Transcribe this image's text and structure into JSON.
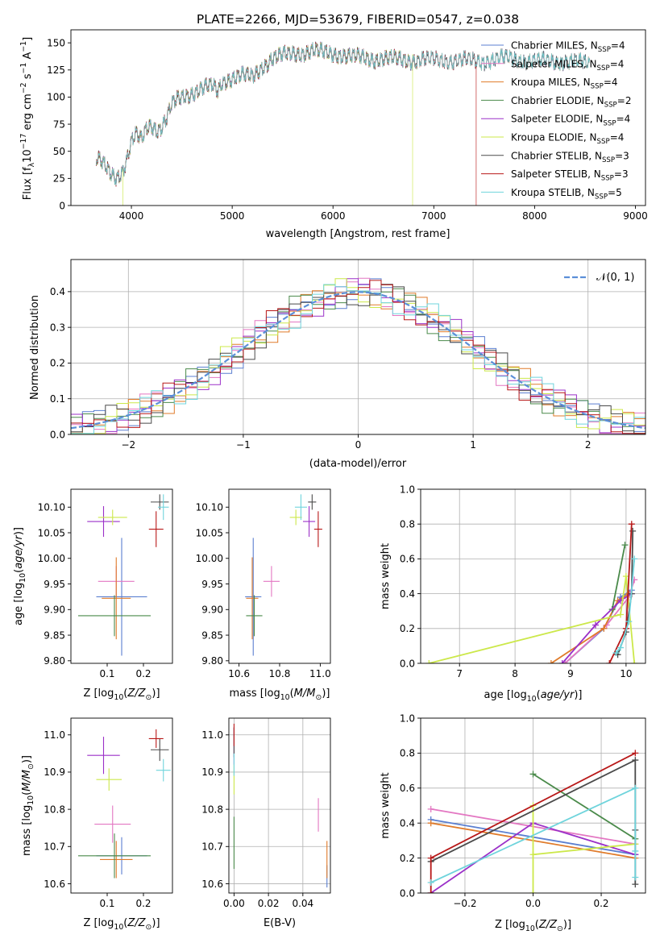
{
  "title": "PLATE=2266, MJD=53679, FIBERID=0547, z=0.038",
  "colors": {
    "Chabrier MILES": "#5b7fd0",
    "Salpeter MILES": "#e377c2",
    "Kroupa MILES": "#e07b2a",
    "Chabrier ELODIE": "#4a8a4a",
    "Salpeter ELODIE": "#9b30c8",
    "Kroupa ELODIE": "#cce84a",
    "Chabrier STELIB": "#4a4a4a",
    "Salpeter STELIB": "#b81818",
    "Kroupa STELIB": "#6fd4dc"
  },
  "legend_spectrum": [
    {
      "name": "Chabrier MILES",
      "nssp": "4"
    },
    {
      "name": "Salpeter MILES",
      "nssp": "4"
    },
    {
      "name": "Kroupa MILES",
      "nssp": "4"
    },
    {
      "name": "Chabrier ELODIE",
      "nssp": "2"
    },
    {
      "name": "Salpeter ELODIE",
      "nssp": "4"
    },
    {
      "name": "Kroupa ELODIE",
      "nssp": "4"
    },
    {
      "name": "Chabrier STELIB",
      "nssp": "3"
    },
    {
      "name": "Salpeter STELIB",
      "nssp": "3"
    },
    {
      "name": "Kroupa STELIB",
      "nssp": "5"
    }
  ],
  "chart_data": [
    {
      "id": "spectrum",
      "type": "line",
      "xlabel": "wavelength [Angstrom, rest frame]",
      "ylabel_parts": [
        "Flux [f",
        "λ",
        "10",
        "−17",
        " erg cm",
        "−2",
        " s",
        "−1",
        " A",
        "−1",
        "]"
      ],
      "xlim": [
        3400,
        9100
      ],
      "ylim": [
        0,
        162
      ],
      "xticks": [
        4000,
        5000,
        6000,
        7000,
        8000,
        9000
      ],
      "yticks": [
        0,
        25,
        50,
        75,
        100,
        125,
        150
      ],
      "continuum": [
        [
          3650,
          42
        ],
        [
          3700,
          40
        ],
        [
          3750,
          35
        ],
        [
          3800,
          30
        ],
        [
          3850,
          27
        ],
        [
          3900,
          30
        ],
        [
          3950,
          40
        ],
        [
          4000,
          58
        ],
        [
          4050,
          65
        ],
        [
          4100,
          60
        ],
        [
          4150,
          72
        ],
        [
          4200,
          75
        ],
        [
          4250,
          70
        ],
        [
          4300,
          72
        ],
        [
          4350,
          80
        ],
        [
          4400,
          92
        ],
        [
          4450,
          97
        ],
        [
          4500,
          100
        ],
        [
          4600,
          104
        ],
        [
          4700,
          108
        ],
        [
          4800,
          110
        ],
        [
          4860,
          105
        ],
        [
          4900,
          114
        ],
        [
          5000,
          118
        ],
        [
          5100,
          120
        ],
        [
          5200,
          118
        ],
        [
          5300,
          128
        ],
        [
          5400,
          136
        ],
        [
          5500,
          138
        ],
        [
          5600,
          140
        ],
        [
          5700,
          141
        ],
        [
          5800,
          143
        ],
        [
          5900,
          141
        ],
        [
          6000,
          140
        ],
        [
          6100,
          139
        ],
        [
          6200,
          137
        ],
        [
          6300,
          136
        ],
        [
          6400,
          135
        ],
        [
          6500,
          136
        ],
        [
          6600,
          135
        ],
        [
          6700,
          134
        ],
        [
          6800,
          134
        ],
        [
          6900,
          135
        ],
        [
          7000,
          134
        ],
        [
          7100,
          134
        ],
        [
          7200,
          134
        ],
        [
          7300,
          134
        ],
        [
          7400,
          133
        ],
        [
          7500,
          133
        ],
        [
          7600,
          135
        ],
        [
          7700,
          136
        ],
        [
          7800,
          135
        ],
        [
          7900,
          134
        ],
        [
          8000,
          133
        ],
        [
          8100,
          133
        ],
        [
          8200,
          133
        ],
        [
          8300,
          133
        ],
        [
          8400,
          132
        ],
        [
          8500,
          132
        ],
        [
          8550,
          131
        ]
      ],
      "dips": [
        {
          "series": "Kroupa ELODIE",
          "x": 3915,
          "to": 0
        },
        {
          "series": "Kroupa ELODIE",
          "x": 6790,
          "to": 0
        },
        {
          "series": "Salpeter STELIB",
          "x": 7420,
          "to": 0
        }
      ]
    },
    {
      "id": "residuals",
      "type": "histogram",
      "xlabel": "(data-model)/error",
      "ylabel": "Normed distribution",
      "xlim": [
        -2.5,
        2.5
      ],
      "ylim": [
        0,
        0.49
      ],
      "xticks": [
        -2,
        -1,
        0,
        1,
        2
      ],
      "yticks": [
        0.0,
        0.1,
        0.2,
        0.3,
        0.4
      ],
      "grid": true,
      "legend": "N(0,1)",
      "bin_width": 0.1,
      "reference": "normal(0,1)"
    },
    {
      "id": "age-vs-Z",
      "type": "errorbar",
      "xlabel": "Z [log10(Z/Z⊙)]",
      "ylabel": "age  [log10(age/yr)]",
      "xlim": [
        0.0,
        0.28
      ],
      "ylim": [
        9.795,
        10.135
      ],
      "xticks": [
        0.1,
        0.2
      ],
      "yticks": [
        9.8,
        9.85,
        9.9,
        9.95,
        10.0,
        10.05,
        10.1
      ],
      "points": [
        {
          "series": "Chabrier MILES",
          "x": 0.14,
          "xerr": 0.07,
          "y": 9.925,
          "yerr": 0.115
        },
        {
          "series": "Salpeter MILES",
          "x": 0.125,
          "xerr": 0.05,
          "y": 9.955,
          "yerr": 0.03
        },
        {
          "series": "Kroupa MILES",
          "x": 0.125,
          "xerr": 0.04,
          "y": 9.922,
          "yerr": 0.08
        },
        {
          "series": "Chabrier ELODIE",
          "x": 0.12,
          "xerr": 0.1,
          "y": 9.888,
          "yerr": 0.04
        },
        {
          "series": "Salpeter ELODIE",
          "x": 0.09,
          "xerr": 0.045,
          "y": 10.072,
          "yerr": 0.03
        },
        {
          "series": "Kroupa ELODIE",
          "x": 0.115,
          "xerr": 0.04,
          "y": 10.08,
          "yerr": 0.015
        },
        {
          "series": "Chabrier STELIB",
          "x": 0.245,
          "xerr": 0.025,
          "y": 10.11,
          "yerr": 0.015
        },
        {
          "series": "Salpeter STELIB",
          "x": 0.235,
          "xerr": 0.02,
          "y": 10.057,
          "yerr": 0.035
        },
        {
          "series": "Kroupa STELIB",
          "x": 0.255,
          "xerr": 0.015,
          "y": 10.1,
          "yerr": 0.025
        }
      ]
    },
    {
      "id": "age-vs-mass",
      "type": "errorbar",
      "xlabel": "mass [log10(M/M⊙)]",
      "ylabel": "",
      "xlim": [
        10.55,
        11.05
      ],
      "ylim": [
        9.795,
        10.135
      ],
      "xticks": [
        10.6,
        10.8,
        11.0
      ],
      "yticks": [
        9.8,
        9.85,
        9.9,
        9.95,
        10.0,
        10.05,
        10.1
      ],
      "points": [
        {
          "series": "Chabrier MILES",
          "x": 10.67,
          "xerr": 0.04,
          "y": 9.925,
          "yerr": 0.115
        },
        {
          "series": "Salpeter MILES",
          "x": 10.76,
          "xerr": 0.04,
          "y": 9.955,
          "yerr": 0.03
        },
        {
          "series": "Kroupa MILES",
          "x": 10.665,
          "xerr": 0.03,
          "y": 9.922,
          "yerr": 0.08
        },
        {
          "series": "Chabrier ELODIE",
          "x": 10.675,
          "xerr": 0.04,
          "y": 9.888,
          "yerr": 0.04
        },
        {
          "series": "Salpeter ELODIE",
          "x": 10.945,
          "xerr": 0.03,
          "y": 10.072,
          "yerr": 0.03
        },
        {
          "series": "Kroupa ELODIE",
          "x": 10.88,
          "xerr": 0.03,
          "y": 10.08,
          "yerr": 0.015
        },
        {
          "series": "Chabrier STELIB",
          "x": 10.96,
          "xerr": 0.02,
          "y": 10.11,
          "yerr": 0.015
        },
        {
          "series": "Salpeter STELIB",
          "x": 10.99,
          "xerr": 0.02,
          "y": 10.057,
          "yerr": 0.035
        },
        {
          "series": "Kroupa STELIB",
          "x": 10.905,
          "xerr": 0.03,
          "y": 10.1,
          "yerr": 0.025
        }
      ]
    },
    {
      "id": "mass-weight-vs-age",
      "type": "line",
      "xlabel": "age  [log10(age/yr)]",
      "ylabel": "mass weight",
      "xlim": [
        6.3,
        10.35
      ],
      "ylim": [
        0.0,
        1.0
      ],
      "xticks": [
        7,
        8,
        9,
        10
      ],
      "yticks": [
        0.0,
        0.2,
        0.4,
        0.6,
        0.8,
        1.0
      ],
      "grid": true,
      "series": [
        {
          "name": "Chabrier MILES",
          "points": [
            [
              8.9,
              0.0
            ],
            [
              9.6,
              0.2
            ],
            [
              9.9,
              0.38
            ],
            [
              10.1,
              0.42
            ]
          ]
        },
        {
          "name": "Salpeter MILES",
          "points": [
            [
              8.9,
              0.0
            ],
            [
              9.65,
              0.22
            ],
            [
              10.05,
              0.38
            ],
            [
              10.15,
              0.48
            ]
          ]
        },
        {
          "name": "Kroupa MILES",
          "points": [
            [
              8.65,
              0.0
            ],
            [
              9.6,
              0.2
            ],
            [
              9.85,
              0.36
            ],
            [
              10.05,
              0.4
            ]
          ]
        },
        {
          "name": "Chabrier ELODIE",
          "points": [
            [
              9.75,
              0.31
            ],
            [
              9.98,
              0.68
            ]
          ]
        },
        {
          "name": "Salpeter ELODIE",
          "points": [
            [
              8.85,
              0.0
            ],
            [
              9.45,
              0.22
            ],
            [
              9.9,
              0.36
            ],
            [
              10.1,
              0.4
            ]
          ]
        },
        {
          "name": "Kroupa ELODIE",
          "points": [
            [
              6.45,
              0.0
            ],
            [
              9.9,
              0.28
            ],
            [
              10.0,
              0.5
            ],
            [
              10.15,
              0.0
            ]
          ]
        },
        {
          "name": "Chabrier STELIB",
          "points": [
            [
              9.85,
              0.05
            ],
            [
              10.0,
              0.18
            ],
            [
              10.1,
              0.4
            ],
            [
              10.12,
              0.76
            ]
          ]
        },
        {
          "name": "Salpeter STELIB",
          "points": [
            [
              9.7,
              0.0
            ],
            [
              10.0,
              0.2
            ],
            [
              10.1,
              0.8
            ]
          ]
        },
        {
          "name": "Kroupa STELIB",
          "points": [
            [
              9.82,
              0.06
            ],
            [
              9.9,
              0.09
            ],
            [
              10.05,
              0.24
            ],
            [
              10.15,
              0.6
            ]
          ]
        }
      ]
    },
    {
      "id": "mass-vs-Z",
      "type": "errorbar",
      "xlabel": "Z [log10(Z/Z⊙)]",
      "ylabel": "mass [log10(M/M⊙)]",
      "xlim": [
        0.0,
        0.28
      ],
      "ylim": [
        10.575,
        11.045
      ],
      "xticks": [
        0.1,
        0.2
      ],
      "yticks": [
        10.6,
        10.7,
        10.8,
        10.9,
        11.0
      ],
      "points": [
        {
          "series": "Chabrier MILES",
          "x": 0.14,
          "xerr": 0.07,
          "y": 10.675,
          "yerr": 0.05
        },
        {
          "series": "Salpeter MILES",
          "x": 0.115,
          "xerr": 0.05,
          "y": 10.76,
          "yerr": 0.05
        },
        {
          "series": "Kroupa MILES",
          "x": 0.125,
          "xerr": 0.045,
          "y": 10.665,
          "yerr": 0.05
        },
        {
          "series": "Chabrier ELODIE",
          "x": 0.12,
          "xerr": 0.1,
          "y": 10.675,
          "yerr": 0.06
        },
        {
          "series": "Salpeter ELODIE",
          "x": 0.09,
          "xerr": 0.045,
          "y": 10.945,
          "yerr": 0.05
        },
        {
          "series": "Kroupa ELODIE",
          "x": 0.105,
          "xerr": 0.035,
          "y": 10.88,
          "yerr": 0.03
        },
        {
          "series": "Chabrier STELIB",
          "x": 0.245,
          "xerr": 0.025,
          "y": 10.96,
          "yerr": 0.03
        },
        {
          "series": "Salpeter STELIB",
          "x": 0.235,
          "xerr": 0.02,
          "y": 10.99,
          "yerr": 0.025
        },
        {
          "series": "Kroupa STELIB",
          "x": 0.255,
          "xerr": 0.02,
          "y": 10.905,
          "yerr": 0.03
        }
      ]
    },
    {
      "id": "mass-vs-ebv",
      "type": "errorbar",
      "xlabel": "E(B-V)",
      "ylabel": "",
      "xlim": [
        -0.003,
        0.056
      ],
      "ylim": [
        10.575,
        11.045
      ],
      "xticks": [
        0.0,
        0.02,
        0.04
      ],
      "yticks": [
        10.6,
        10.7,
        10.8,
        10.9,
        11.0
      ],
      "grid": true,
      "points": [
        {
          "series": "Chabrier MILES",
          "x": 0.054,
          "xerr": 0.0,
          "y": 10.62,
          "yerr": 0.03
        },
        {
          "series": "Salpeter MILES",
          "x": 0.049,
          "xerr": 0.0,
          "y": 10.785,
          "yerr": 0.045
        },
        {
          "series": "Kroupa MILES",
          "x": 0.054,
          "xerr": 0.0,
          "y": 10.665,
          "yerr": 0.05
        },
        {
          "series": "Chabrier ELODIE",
          "x": 0.0,
          "xerr": 0.0,
          "y": 10.71,
          "yerr": 0.07
        },
        {
          "series": "Salpeter ELODIE",
          "x": 0.0,
          "xerr": 0.0,
          "y": 10.97,
          "yerr": 0.05
        },
        {
          "series": "Kroupa ELODIE",
          "x": 0.0,
          "xerr": 0.0,
          "y": 10.88,
          "yerr": 0.04
        },
        {
          "series": "Chabrier STELIB",
          "x": 0.0,
          "xerr": 0.0,
          "y": 10.98,
          "yerr": 0.04
        },
        {
          "series": "Salpeter STELIB",
          "x": 0.0,
          "xerr": 0.0,
          "y": 11.0,
          "yerr": 0.03
        },
        {
          "series": "Kroupa STELIB",
          "x": 0.0,
          "xerr": 0.0,
          "y": 10.92,
          "yerr": 0.03
        }
      ]
    },
    {
      "id": "mass-weight-vs-Z",
      "type": "line",
      "xlabel": "Z [log10(Z/Z⊙)]",
      "ylabel": "mass weight",
      "xlim": [
        -0.33,
        0.33
      ],
      "ylim": [
        0.0,
        1.0
      ],
      "xticks": [
        -0.2,
        0.0,
        0.2
      ],
      "yticks": [
        0.0,
        0.2,
        0.4,
        0.6,
        0.8,
        1.0
      ],
      "grid": true,
      "series": [
        {
          "name": "Chabrier MILES",
          "points": [
            [
              -0.3,
              0.42
            ],
            [
              0.3,
              0.22
            ]
          ]
        },
        {
          "name": "Salpeter MILES",
          "points": [
            [
              -0.3,
              0.48
            ],
            [
              0.3,
              0.28
            ]
          ]
        },
        {
          "name": "Kroupa MILES",
          "points": [
            [
              -0.3,
              0.4
            ],
            [
              0.3,
              0.2
            ]
          ]
        },
        {
          "name": "Chabrier ELODIE",
          "points": [
            [
              0.0,
              0.68
            ],
            [
              0.3,
              0.31
            ]
          ]
        },
        {
          "name": "Salpeter ELODIE",
          "points": [
            [
              -0.3,
              0.0
            ],
            [
              0.0,
              0.4
            ],
            [
              0.3,
              0.22
            ]
          ]
        },
        {
          "name": "Kroupa ELODIE",
          "points": [
            [
              0.0,
              0.0
            ],
            [
              0.0,
              0.5
            ],
            [
              0.0,
              0.22
            ],
            [
              0.3,
              0.28
            ]
          ]
        },
        {
          "name": "Chabrier STELIB",
          "points": [
            [
              -0.3,
              0.18
            ],
            [
              0.3,
              0.76
            ],
            [
              0.3,
              0.05
            ],
            [
              0.3,
              0.36
            ]
          ]
        },
        {
          "name": "Salpeter STELIB",
          "points": [
            [
              -0.3,
              0.0
            ],
            [
              -0.3,
              0.2
            ],
            [
              0.3,
              0.8
            ]
          ]
        },
        {
          "name": "Kroupa STELIB",
          "points": [
            [
              -0.3,
              0.06
            ],
            [
              0.3,
              0.6
            ],
            [
              0.3,
              0.09
            ],
            [
              0.3,
              0.24
            ]
          ]
        }
      ]
    }
  ]
}
